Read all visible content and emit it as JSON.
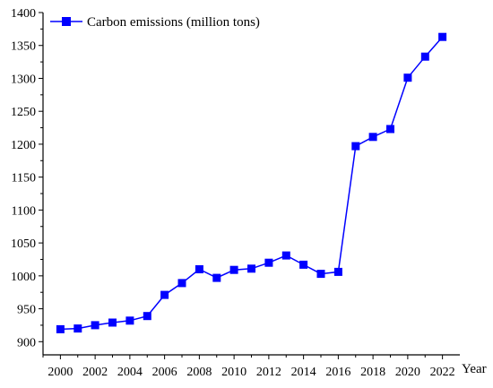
{
  "chart_data": {
    "type": "line",
    "title": "",
    "xlabel": "Year",
    "ylabel": "",
    "x": [
      2000,
      2001,
      2002,
      2003,
      2004,
      2005,
      2006,
      2007,
      2008,
      2009,
      2010,
      2011,
      2012,
      2013,
      2014,
      2015,
      2016,
      2017,
      2018,
      2019,
      2020,
      2021,
      2022
    ],
    "series": [
      {
        "name": "Carbon emissions (million tons)",
        "color": "#0000ff",
        "marker": "square",
        "values": [
          919,
          920,
          925,
          929,
          932,
          939,
          971,
          989,
          1010,
          997,
          1009,
          1011,
          1020,
          1031,
          1017,
          1003,
          1006,
          1197,
          1211,
          1223,
          1301,
          1333,
          1363
        ]
      }
    ],
    "xlim": [
      1999,
      2023
    ],
    "ylim": [
      880,
      1400
    ],
    "x_ticks": [
      "2000",
      "2002",
      "2004",
      "2006",
      "2008",
      "2010",
      "2012",
      "2014",
      "2016",
      "2018",
      "2020",
      "2022"
    ],
    "y_ticks": [
      "900",
      "950",
      "1000",
      "1050",
      "1100",
      "1150",
      "1200",
      "1250",
      "1300",
      "1350",
      "1400"
    ],
    "grid": false,
    "legend_position": "top-left"
  }
}
